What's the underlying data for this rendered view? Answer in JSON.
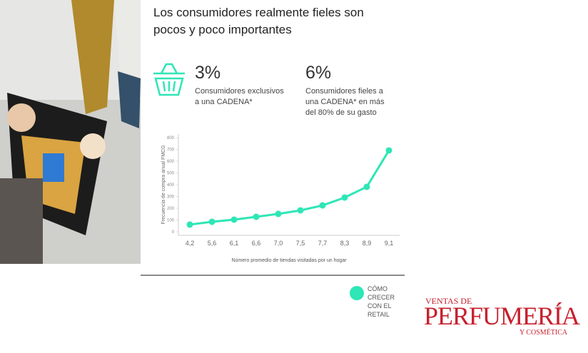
{
  "header": {
    "title": "Los consumidores realmente fieles son pocos y poco importantes"
  },
  "stats": [
    {
      "value": "3%",
      "text": "Consumidores exclusivos a una CADENA*"
    },
    {
      "value": "6%",
      "text": "Consumidores fieles a una CADENA* en más del 80% de su gasto"
    }
  ],
  "chart_data": {
    "type": "line",
    "categories": [
      "4,2",
      "5,6",
      "6,1",
      "6,6",
      "7,0",
      "7,5",
      "7,7",
      "8,3",
      "8,9",
      "9,1"
    ],
    "values": [
      61,
      85,
      103,
      127,
      152,
      182,
      224,
      291,
      382,
      691
    ],
    "color": "#2ee6b6",
    "ylim": [
      0,
      800
    ],
    "yticks": [
      0,
      100,
      200,
      300,
      400,
      500,
      600,
      700,
      800
    ],
    "y_label": "Frecuencia de compra anual FMCG",
    "x_label": "Número promedio de tiendas visitadas por un hogar",
    "grid": false
  },
  "footer": {
    "badge": "CÓMO CRECER CON EL RETAIL"
  },
  "logo": {
    "top": "VENTAS DE",
    "main": "PERFUMERÍA",
    "mark": "®",
    "bottom": "Y COSMÉTICA"
  }
}
